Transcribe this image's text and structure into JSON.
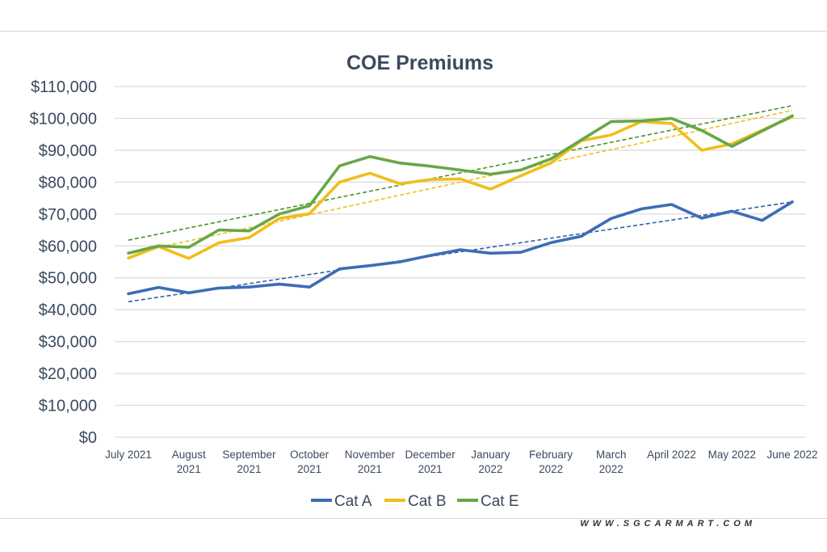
{
  "chart_data": {
    "type": "line",
    "title": "COE Premiums",
    "xlabel": "",
    "ylabel": "",
    "ylim": [
      0,
      110000
    ],
    "y_ticks": [
      0,
      10000,
      20000,
      30000,
      40000,
      50000,
      60000,
      70000,
      80000,
      90000,
      100000,
      110000
    ],
    "y_tick_labels": [
      "$0",
      "$10,000",
      "$20,000",
      "$30,000",
      "$40,000",
      "$50,000",
      "$60,000",
      "$70,000",
      "$80,000",
      "$90,000",
      "$100,000",
      "$110,000"
    ],
    "grid": true,
    "legend_position": "bottom",
    "x_labels": [
      [
        "July 2021"
      ],
      [
        "August",
        "2021"
      ],
      [
        "September",
        "2021"
      ],
      [
        "October",
        "2021"
      ],
      [
        "November",
        "2021"
      ],
      [
        "December",
        "2021"
      ],
      [
        "January",
        "2022"
      ],
      [
        "February",
        "2022"
      ],
      [
        "March",
        "2022"
      ],
      [
        "April 2022"
      ],
      [
        "May 2022"
      ],
      [
        "June 2022"
      ]
    ],
    "series": [
      {
        "name": "Cat A",
        "color": "#3d6db5",
        "values": [
          45000,
          47000,
          45300,
          46800,
          47100,
          48000,
          47100,
          52800,
          53800,
          55000,
          57000,
          58800,
          57700,
          58000,
          61000,
          63000,
          68600,
          71600,
          73000,
          68700,
          70900,
          68000,
          73800
        ]
      },
      {
        "name": "Cat B",
        "color": "#f0be1a",
        "values": [
          56200,
          59800,
          56100,
          61000,
          62600,
          68600,
          70100,
          80000,
          82800,
          79500,
          80800,
          81000,
          77800,
          82000,
          86000,
          93000,
          94800,
          99000,
          98400,
          90000,
          92000,
          96300,
          100500
        ]
      },
      {
        "name": "Cat E",
        "color": "#67a746",
        "values": [
          57700,
          60000,
          59600,
          65000,
          64700,
          70000,
          72600,
          85100,
          88000,
          86000,
          85000,
          83800,
          82500,
          83800,
          87300,
          93200,
          99000,
          99200,
          100000,
          96200,
          91200,
          96000,
          100800
        ]
      }
    ],
    "trendlines": [
      {
        "series": "Cat A",
        "style": "dashed",
        "color": "#2f5fa8",
        "start": 42500,
        "end": 73800
      },
      {
        "series": "Cat B",
        "style": "dashed",
        "color": "#f0be1a",
        "start": 57500,
        "end": 102500
      },
      {
        "series": "Cat E",
        "style": "dashed",
        "color": "#4d8f2a",
        "start": 61800,
        "end": 104000
      }
    ]
  },
  "watermark": "WWW.SGCARMART.COM"
}
